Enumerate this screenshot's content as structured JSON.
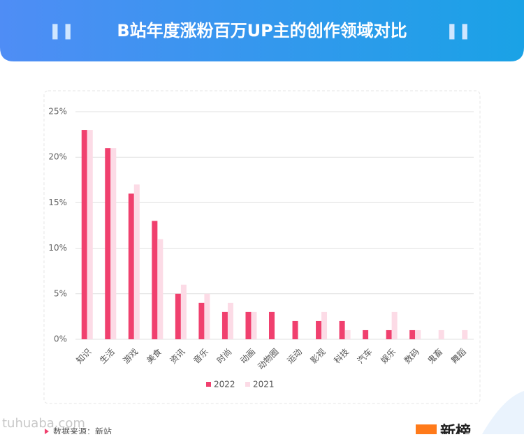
{
  "chart_data": {
    "type": "bar",
    "title": "B站年度涨粉百万UP主的创作领域对比",
    "categories": [
      "知识",
      "生活",
      "游戏",
      "美食",
      "资讯",
      "音乐",
      "时尚",
      "动画",
      "动物圈",
      "运动",
      "影视",
      "科技",
      "汽车",
      "娱乐",
      "数码",
      "鬼畜",
      "舞蹈"
    ],
    "series": [
      {
        "name": "2022",
        "color": "#f0406e",
        "values": [
          23,
          21,
          16,
          13,
          5,
          4,
          3,
          3,
          3,
          2,
          2,
          2,
          1,
          1,
          1,
          0,
          0
        ]
      },
      {
        "name": "2021",
        "color": "#fcdbe6",
        "values": [
          23,
          21,
          17,
          11,
          6,
          5,
          4,
          3,
          0,
          0,
          3,
          1,
          0,
          3,
          1,
          1,
          1
        ]
      }
    ],
    "ylim": [
      0,
      25
    ],
    "yticks": [
      {
        "value": 0,
        "label": "0%"
      },
      {
        "value": 5,
        "label": "5%"
      },
      {
        "value": 10,
        "label": "10%"
      },
      {
        "value": 15,
        "label": "15%"
      },
      {
        "value": 20,
        "label": "20%"
      },
      {
        "value": 25,
        "label": "25%"
      }
    ],
    "grid": true,
    "legend": "bottom"
  },
  "footer": {
    "source": "数据来源：新站",
    "logo": "新榜",
    "watermark": "tuhuaba.com"
  }
}
